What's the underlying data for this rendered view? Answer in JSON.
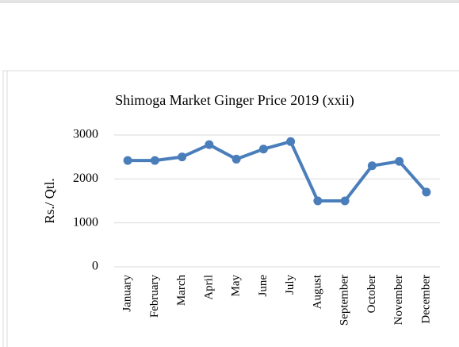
{
  "chart_data": {
    "type": "line",
    "title": "Shimoga Market Ginger Price 2019 (xxii)",
    "y_label": "Rs./ Qtl.",
    "categories": [
      "January",
      "February",
      "March",
      "April",
      "May",
      "June",
      "July",
      "August",
      "September",
      "October",
      "November",
      "December"
    ],
    "series": [
      {
        "name": "Price",
        "color": "#4a7ebb",
        "values": [
          2420,
          2420,
          2500,
          2780,
          2450,
          2680,
          2850,
          1500,
          1500,
          2300,
          2400,
          1700
        ]
      }
    ],
    "ylim": [
      0,
      3000
    ],
    "yticks": [
      0,
      1000,
      2000,
      3000
    ],
    "grid": true
  }
}
